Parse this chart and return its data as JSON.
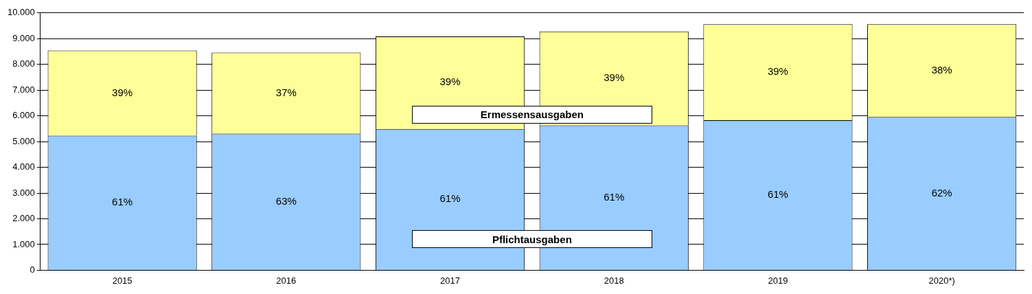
{
  "chart_data": {
    "type": "bar",
    "stacked": true,
    "categories": [
      "2015",
      "2016",
      "2017",
      "2018",
      "2019",
      "2020*)"
    ],
    "series": [
      {
        "name": "Pflichtausgaben",
        "color": "#99ccff",
        "values": [
          5230,
          5310,
          5490,
          5630,
          5830,
          5960
        ]
      },
      {
        "name": "Ermessensausgaben",
        "color": "#ffff99",
        "values": [
          3310,
          3150,
          3600,
          3650,
          3730,
          3600
        ]
      }
    ],
    "annotations": [
      "61%",
      "63%",
      "61%",
      "61%",
      "61%",
      "62%",
      "39%",
      "37%",
      "39%",
      "39%",
      "39%",
      "38%"
    ],
    "ylim": [
      0,
      10000
    ],
    "yticks": [
      {
        "value": 0,
        "label": "0"
      },
      {
        "value": 1000,
        "label": "1.000"
      },
      {
        "value": 2000,
        "label": "2.000"
      },
      {
        "value": 3000,
        "label": "3.000"
      },
      {
        "value": 4000,
        "label": "4.000"
      },
      {
        "value": 5000,
        "label": "5.000"
      },
      {
        "value": 6000,
        "label": "6.000"
      },
      {
        "value": 7000,
        "label": "7.000"
      },
      {
        "value": 8000,
        "label": "8.000"
      },
      {
        "value": 9000,
        "label": "9.000"
      },
      {
        "value": 10000,
        "label": "10.000"
      }
    ],
    "grid": "y",
    "legend": false
  }
}
